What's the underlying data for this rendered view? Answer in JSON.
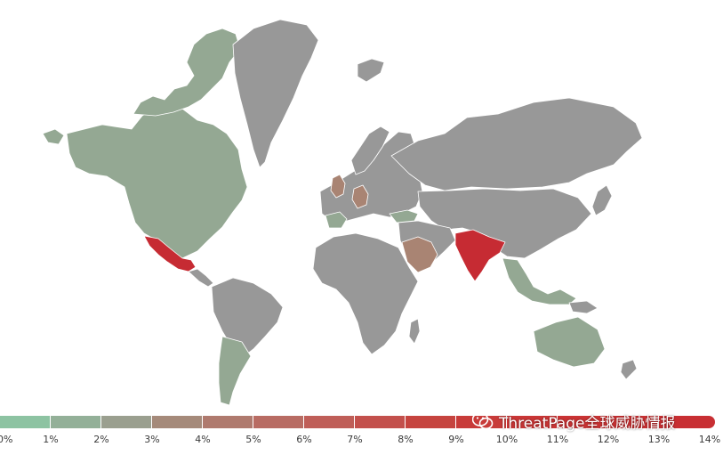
{
  "map": {
    "colors": {
      "no_data": "#989898",
      "low": "#94a893",
      "mid": "#a98473",
      "high": "#c62b33",
      "border": "#ffffff"
    },
    "highlighted_regions": [
      {
        "name": "North America (US & Canada)",
        "level": "low"
      },
      {
        "name": "Greenland",
        "level": "none"
      },
      {
        "name": "Mexico",
        "level": "high"
      },
      {
        "name": "Argentina",
        "level": "low"
      },
      {
        "name": "United Kingdom",
        "level": "mid"
      },
      {
        "name": "Germany",
        "level": "mid"
      },
      {
        "name": "Spain",
        "level": "low"
      },
      {
        "name": "Turkey",
        "level": "low"
      },
      {
        "name": "Saudi Arabia",
        "level": "mid"
      },
      {
        "name": "India",
        "level": "high"
      },
      {
        "name": "Australia",
        "level": "low"
      },
      {
        "name": "Southeast Asia",
        "level": "low"
      }
    ]
  },
  "legend": {
    "ticks": [
      "0%",
      "1%",
      "2%",
      "3%",
      "4%",
      "5%",
      "6%",
      "7%",
      "8%",
      "9%",
      "10%",
      "11%",
      "12%",
      "13%",
      "14%"
    ],
    "gradient": [
      "#8dc3a2",
      "#93b098",
      "#9a9f8f",
      "#a58a7a",
      "#af7a6e",
      "#b86c63",
      "#bf5e58",
      "#c3504c",
      "#c6443f",
      "#c83b39",
      "#c93636",
      "#c93334",
      "#c93133",
      "#c82f33"
    ]
  },
  "watermark": {
    "text": "ThreatPage全球威胁情报",
    "icon": "wechat-icon"
  }
}
